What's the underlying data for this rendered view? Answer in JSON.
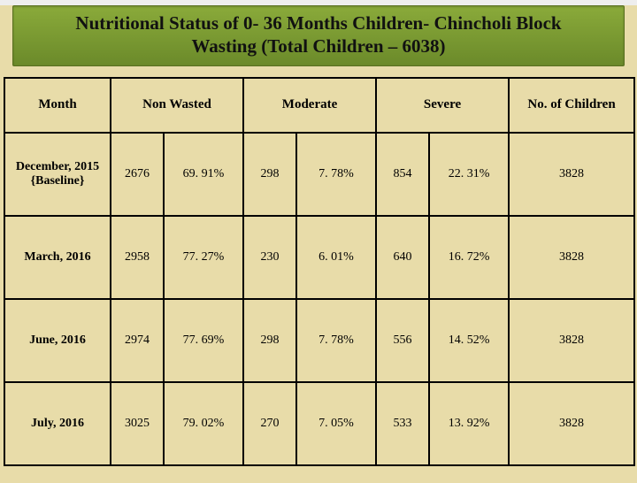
{
  "slide": {
    "background_color": "#e8dca9",
    "title_background": "#7a9a30",
    "border_color": "#000000"
  },
  "title": {
    "line1": "Nutritional Status of  0- 36 Months Children- Chincholi Block",
    "line2": "Wasting (Total Children – 6038)"
  },
  "table": {
    "type": "table",
    "headers": {
      "month": "Month",
      "non_wasted": "Non Wasted",
      "moderate": "Moderate",
      "severe": "Severe",
      "total": "No. of Children"
    },
    "rows": [
      {
        "month": "December, 2015 {Baseline}",
        "non_wasted_n": "2676",
        "non_wasted_pct": "69. 91%",
        "moderate_n": "298",
        "moderate_pct": "7. 78%",
        "severe_n": "854",
        "severe_pct": "22. 31%",
        "total": "3828"
      },
      {
        "month": "March, 2016",
        "non_wasted_n": "2958",
        "non_wasted_pct": "77. 27%",
        "moderate_n": "230",
        "moderate_pct": "6. 01%",
        "severe_n": "640",
        "severe_pct": "16. 72%",
        "total": "3828"
      },
      {
        "month": "June, 2016",
        "non_wasted_n": "2974",
        "non_wasted_pct": "77. 69%",
        "moderate_n": "298",
        "moderate_pct": "7. 78%",
        "severe_n": "556",
        "severe_pct": "14. 52%",
        "total": "3828"
      },
      {
        "month": "July, 2016",
        "non_wasted_n": "3025",
        "non_wasted_pct": "79. 02%",
        "moderate_n": "270",
        "moderate_pct": "7. 05%",
        "severe_n": "533",
        "severe_pct": "13. 92%",
        "total": "3828"
      }
    ]
  }
}
